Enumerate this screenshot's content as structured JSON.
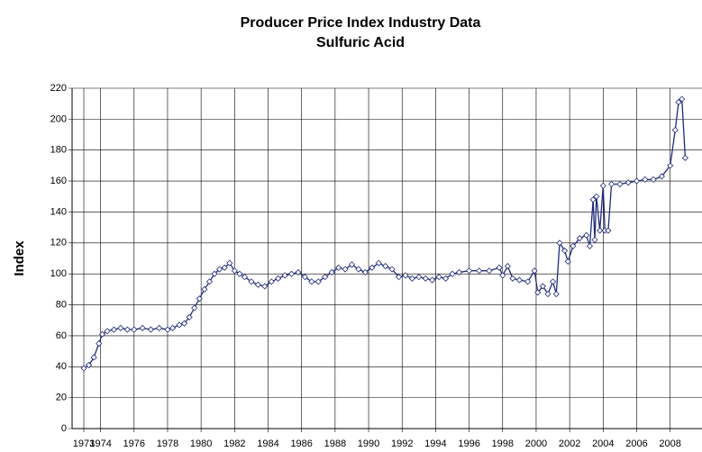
{
  "chart_data": {
    "type": "line",
    "title": "Producer Price Index Industry Data",
    "subtitle": "Sulfuric Acid",
    "y_label": "Index",
    "color": "#1f2a7a",
    "grid": true,
    "markers": true,
    "xlim": [
      1972.3,
      2009.9
    ],
    "xticks": [
      1973,
      1974,
      1976,
      1978,
      1980,
      1982,
      1984,
      1986,
      1988,
      1990,
      1992,
      1994,
      1996,
      1998,
      2000,
      2002,
      2004,
      2006,
      2008
    ],
    "ylim": [
      0,
      220
    ],
    "yticks": [
      0,
      20,
      40,
      60,
      80,
      100,
      120,
      140,
      160,
      180,
      200,
      220
    ],
    "x": [
      1973.0,
      1973.3,
      1973.6,
      1973.9,
      1974.1,
      1974.4,
      1974.8,
      1975.2,
      1975.6,
      1976.0,
      1976.5,
      1977.0,
      1977.5,
      1978.0,
      1978.3,
      1978.7,
      1979.0,
      1979.3,
      1979.6,
      1979.9,
      1980.2,
      1980.5,
      1980.8,
      1981.1,
      1981.4,
      1981.7,
      1982.0,
      1982.3,
      1982.6,
      1983.0,
      1983.4,
      1983.8,
      1984.2,
      1984.6,
      1985.0,
      1985.4,
      1985.8,
      1986.2,
      1986.6,
      1987.0,
      1987.4,
      1987.8,
      1988.2,
      1988.6,
      1989.0,
      1989.4,
      1989.8,
      1990.2,
      1990.6,
      1991.0,
      1991.4,
      1991.8,
      1992.2,
      1992.6,
      1993.0,
      1993.4,
      1993.8,
      1994.2,
      1994.6,
      1995.0,
      1995.4,
      1996.0,
      1996.6,
      1997.2,
      1997.8,
      1998.0,
      1998.3,
      1998.6,
      1999.0,
      1999.5,
      1999.9,
      2000.1,
      2000.4,
      2000.7,
      2001.0,
      2001.2,
      2001.4,
      2001.7,
      2001.9,
      2002.2,
      2002.6,
      2003.0,
      2003.2,
      2003.4,
      2003.5,
      2003.6,
      2003.8,
      2004.0,
      2004.1,
      2004.3,
      2004.5,
      2005.0,
      2005.5,
      2006.0,
      2006.5,
      2007.0,
      2007.5,
      2008.0,
      2008.3,
      2008.5,
      2008.7,
      2008.9
    ],
    "values": [
      39,
      41,
      46,
      55,
      61,
      63,
      64,
      65,
      64,
      64,
      65,
      64,
      65,
      64,
      65,
      67,
      68,
      72,
      78,
      84,
      90,
      95,
      100,
      103,
      104,
      107,
      102,
      100,
      98,
      95,
      93,
      92,
      95,
      97,
      99,
      100,
      101,
      98,
      95,
      95,
      98,
      101,
      104,
      103,
      106,
      103,
      101,
      104,
      107,
      105,
      103,
      98,
      99,
      97,
      98,
      97,
      96,
      98,
      97,
      100,
      101,
      102,
      102,
      102,
      104,
      99,
      105,
      97,
      96,
      95,
      102,
      88,
      92,
      87,
      95,
      87,
      120,
      115,
      108,
      118,
      123,
      125,
      118,
      148,
      122,
      150,
      128,
      157,
      128,
      128,
      158,
      158,
      159,
      160,
      161,
      161,
      163,
      170,
      193,
      211,
      213,
      175
    ]
  }
}
